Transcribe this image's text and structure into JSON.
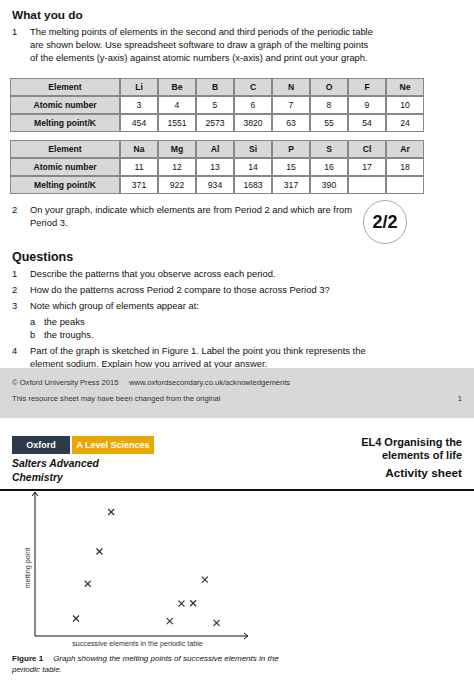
{
  "page": {
    "heading": "What you do",
    "intro": {
      "number": "1",
      "lines": [
        "The melting points of elements in the second and third periods of the periodic table",
        "are shown below. Use spreadsheet software to draw a graph of the melting points",
        "of the elements (y-axis) against atomic numbers (x-axis) and print out your graph."
      ]
    },
    "tables": [
      [
        [
          "Element",
          "Li",
          "Be",
          "B",
          "C",
          "N",
          "O",
          "F",
          "Ne"
        ],
        [
          "Atomic number",
          "3",
          "4",
          "5",
          "6",
          "7",
          "8",
          "9",
          "10"
        ],
        [
          "Melting point/K",
          "454",
          "1551",
          "2573",
          "3820",
          "63",
          "55",
          "54",
          "24"
        ]
      ],
      [
        [
          "Element",
          "Na",
          "Mg",
          "Al",
          "Si",
          "P",
          "S",
          "Cl",
          "Ar"
        ],
        [
          "Atomic number",
          "11",
          "12",
          "13",
          "14",
          "15",
          "16",
          "17",
          "18"
        ],
        [
          "Melting point/K",
          "371",
          "922",
          "934",
          "1683",
          "317",
          "390",
          null,
          null
        ]
      ]
    ],
    "point2": {
      "number": "2",
      "lines": [
        "On your graph, indicate which elements are from Period 2 and which are from",
        "Period 3."
      ]
    },
    "badge": "2/2",
    "questions_heading": "Questions",
    "questions": [
      {
        "number": "1",
        "lines": [
          "Describe the patterns that you observe across each period."
        ]
      },
      {
        "number": "2",
        "lines": [
          "How do the patterns across Period 2 compare to those across Period 3?"
        ]
      },
      {
        "number": "3",
        "lines": [
          "Note which group of elements appear at:"
        ],
        "parts": [
          {
            "letter": "a",
            "text": "the peaks"
          },
          {
            "letter": "b",
            "text": "the troughs."
          }
        ]
      },
      {
        "number": "4",
        "lines": [
          "Part of the graph is sketched in Figure 1. Label the point you think represents the",
          "element sodium. Explain how you arrived at your answer."
        ]
      }
    ],
    "footer_line1": "© Oxford University Press 2015     www.oxfordsecondary.co.uk/acknowledgements",
    "footer_line2": "This resource sheet may have been changed from the original",
    "footer_page": "1",
    "oxford_text": "Oxford",
    "oxford_box_color": "#2d3a4a",
    "level_text": "A Level Sciences",
    "level_box_color": "#e8a800",
    "unit_title": [
      "EL4 Organising the",
      "elements of life"
    ],
    "series_title": [
      "Salters Advanced",
      "Chemistry"
    ],
    "sheet_type": "Activity sheet",
    "caption_label": "Figure 1",
    "caption_lines": [
      "Graph showing the melting points of successive elements in the",
      "periodic table."
    ]
  },
  "chart_data": {
    "type": "scatter",
    "x": [
      3,
      4,
      5,
      6,
      11,
      12,
      13,
      14,
      15
    ],
    "values": [
      454,
      1551,
      2573,
      3820,
      371,
      922,
      934,
      1683,
      317
    ],
    "color": "#333333",
    "marker": "x",
    "xlabel": "successive elements in the periodic table",
    "ylabel": "melting point",
    "xlim": [
      -0.5,
      17
    ],
    "ylim": [
      -100,
      4200
    ],
    "tick_labels": false
  }
}
